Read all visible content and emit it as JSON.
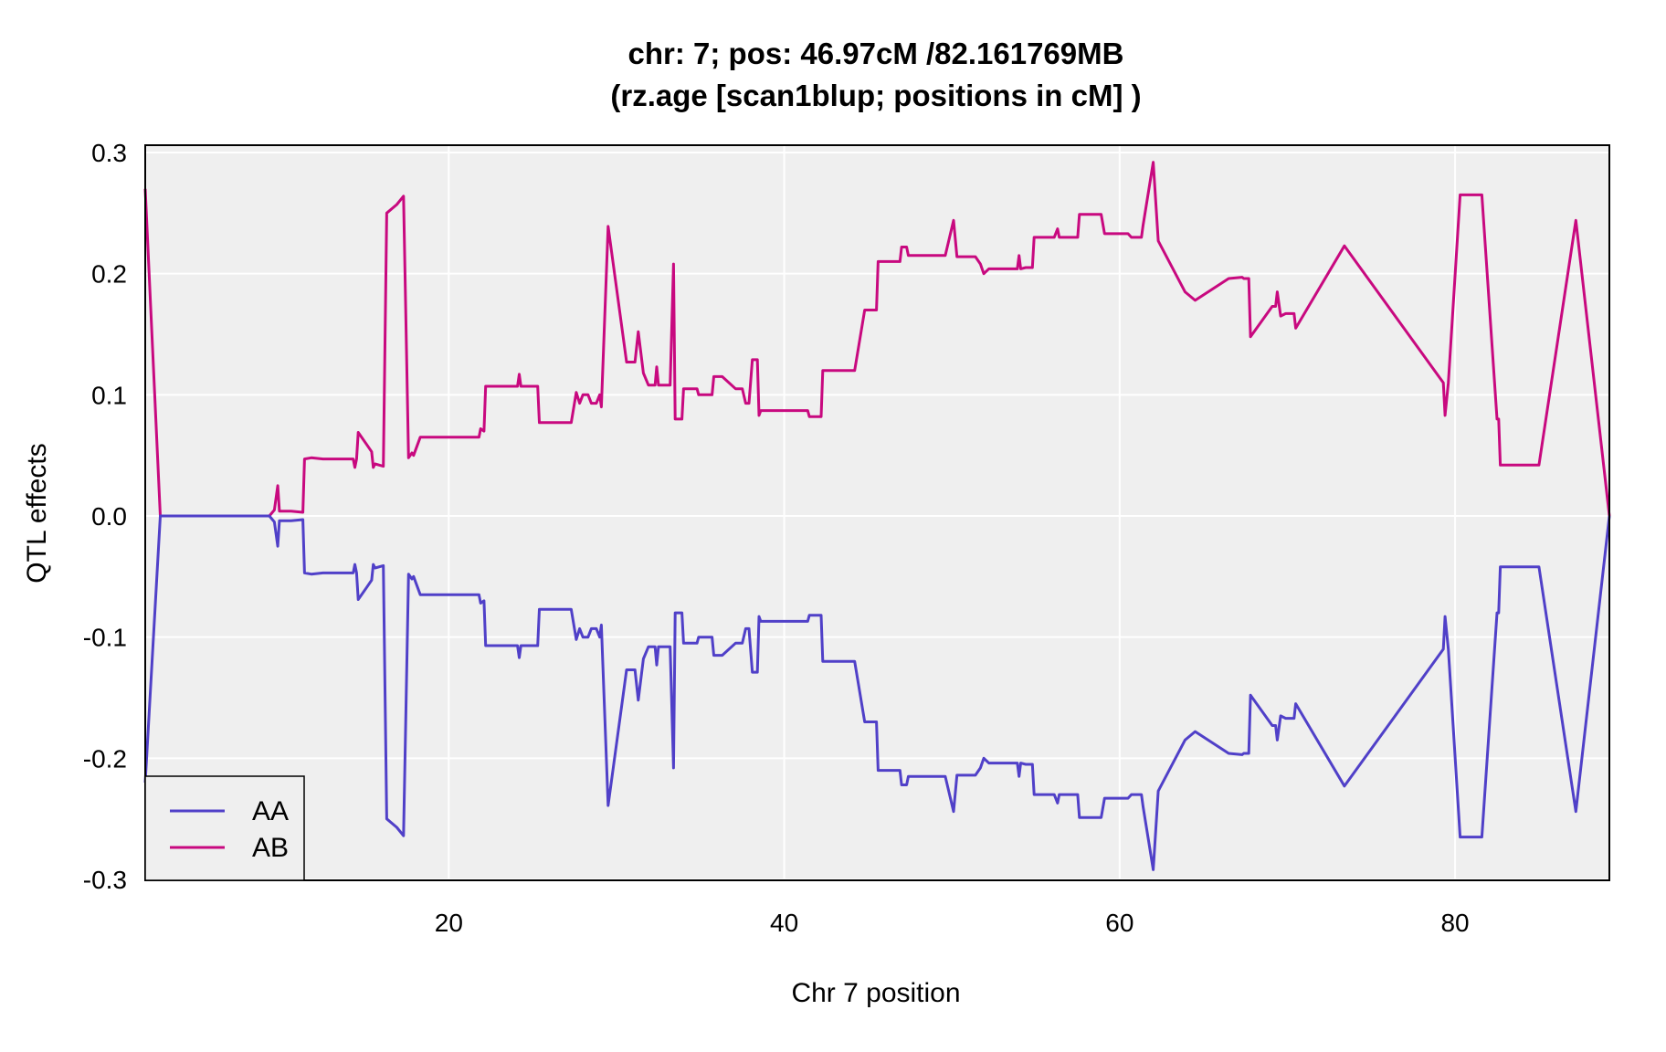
{
  "chart_data": {
    "type": "line",
    "title": "chr: 7; pos: 46.97cM /82.161769MB",
    "subtitle": "(rz.age [scan1blup; positions in cM] )",
    "xlabel": "Chr 7 position",
    "ylabel": "QTL effects",
    "xlim": [
      1.9,
      89.2
    ],
    "ylim": [
      -0.3,
      0.3
    ],
    "x_ticks": [
      20,
      40,
      60,
      80
    ],
    "y_ticks": [
      -0.3,
      -0.2,
      -0.1,
      0.0,
      0.1,
      0.2,
      0.3
    ],
    "x_tick_labels": [
      "20",
      "40",
      "60",
      "80"
    ],
    "y_tick_labels": [
      "-0.3",
      "-0.2",
      "-0.1",
      "0.0",
      "0.1",
      "0.2",
      "0.3"
    ],
    "grid": true,
    "legend_position": "bottom-left",
    "series": [
      {
        "name": "AB",
        "color": "#c8097f",
        "points": [
          [
            1.9,
            0.27
          ],
          [
            2.8,
            0
          ],
          [
            9.3,
            0
          ],
          [
            9.6,
            0.005
          ],
          [
            9.8,
            0.025
          ],
          [
            9.9,
            0.004
          ],
          [
            10.6,
            0.004
          ],
          [
            11.3,
            0.003
          ],
          [
            11.4,
            0.047
          ],
          [
            11.8,
            0.048
          ],
          [
            12.5,
            0.047
          ],
          [
            14.3,
            0.047
          ],
          [
            14.4,
            0.04
          ],
          [
            14.5,
            0.047
          ],
          [
            14.6,
            0.069
          ],
          [
            15.1,
            0.059
          ],
          [
            15.4,
            0.053
          ],
          [
            15.5,
            0.04
          ],
          [
            15.6,
            0.043
          ],
          [
            16.1,
            0.041
          ],
          [
            16.3,
            0.25
          ],
          [
            16.9,
            0.257
          ],
          [
            17.3,
            0.264
          ],
          [
            17.6,
            0.048
          ],
          [
            17.8,
            0.052
          ],
          [
            17.9,
            0.05
          ],
          [
            18.3,
            0.065
          ],
          [
            21.8,
            0.065
          ],
          [
            21.9,
            0.072
          ],
          [
            22.1,
            0.07
          ],
          [
            22.2,
            0.107
          ],
          [
            24.1,
            0.107
          ],
          [
            24.2,
            0.117
          ],
          [
            24.3,
            0.107
          ],
          [
            25.3,
            0.107
          ],
          [
            25.4,
            0.077
          ],
          [
            27.3,
            0.077
          ],
          [
            27.6,
            0.102
          ],
          [
            27.8,
            0.093
          ],
          [
            28.0,
            0.1
          ],
          [
            28.3,
            0.1
          ],
          [
            28.5,
            0.093
          ],
          [
            28.8,
            0.093
          ],
          [
            29.0,
            0.1
          ],
          [
            29.1,
            0.09
          ],
          [
            29.5,
            0.239
          ],
          [
            30.6,
            0.127
          ],
          [
            31.1,
            0.127
          ],
          [
            31.3,
            0.152
          ],
          [
            31.6,
            0.118
          ],
          [
            31.9,
            0.108
          ],
          [
            32.3,
            0.108
          ],
          [
            32.4,
            0.123
          ],
          [
            32.5,
            0.108
          ],
          [
            33.2,
            0.108
          ],
          [
            33.4,
            0.208
          ],
          [
            33.5,
            0.08
          ],
          [
            33.9,
            0.08
          ],
          [
            34.0,
            0.105
          ],
          [
            34.8,
            0.105
          ],
          [
            34.9,
            0.1
          ],
          [
            35.7,
            0.1
          ],
          [
            35.8,
            0.115
          ],
          [
            36.3,
            0.115
          ],
          [
            37.1,
            0.105
          ],
          [
            37.5,
            0.105
          ],
          [
            37.7,
            0.093
          ],
          [
            37.9,
            0.093
          ],
          [
            38.1,
            0.129
          ],
          [
            38.4,
            0.129
          ],
          [
            38.5,
            0.083
          ],
          [
            38.6,
            0.087
          ],
          [
            41.4,
            0.087
          ],
          [
            41.5,
            0.082
          ],
          [
            42.2,
            0.082
          ],
          [
            42.3,
            0.12
          ],
          [
            44.2,
            0.12
          ],
          [
            44.8,
            0.17
          ],
          [
            45.5,
            0.17
          ],
          [
            45.6,
            0.21
          ],
          [
            46.9,
            0.21
          ],
          [
            47.0,
            0.222
          ],
          [
            47.3,
            0.222
          ],
          [
            47.4,
            0.215
          ],
          [
            49.6,
            0.215
          ],
          [
            50.1,
            0.244
          ],
          [
            50.3,
            0.214
          ],
          [
            51.4,
            0.214
          ],
          [
            51.7,
            0.208
          ],
          [
            51.9,
            0.2
          ],
          [
            52.2,
            0.204
          ],
          [
            53.9,
            0.204
          ],
          [
            54.0,
            0.215
          ],
          [
            54.1,
            0.204
          ],
          [
            54.4,
            0.205
          ],
          [
            54.8,
            0.205
          ],
          [
            54.9,
            0.23
          ],
          [
            56.1,
            0.23
          ],
          [
            56.3,
            0.237
          ],
          [
            56.4,
            0.23
          ],
          [
            57.5,
            0.23
          ],
          [
            57.6,
            0.249
          ],
          [
            58.9,
            0.249
          ],
          [
            59.1,
            0.233
          ],
          [
            60.5,
            0.233
          ],
          [
            60.7,
            0.23
          ],
          [
            61.3,
            0.23
          ],
          [
            61.4,
            0.24
          ],
          [
            62.0,
            0.292
          ],
          [
            62.3,
            0.227
          ],
          [
            63.9,
            0.185
          ],
          [
            64.5,
            0.178
          ],
          [
            66.5,
            0.196
          ],
          [
            67.3,
            0.197
          ],
          [
            67.4,
            0.196
          ],
          [
            67.7,
            0.196
          ],
          [
            67.8,
            0.148
          ],
          [
            69.1,
            0.173
          ],
          [
            69.3,
            0.173
          ],
          [
            69.4,
            0.185
          ],
          [
            69.6,
            0.165
          ],
          [
            69.9,
            0.167
          ],
          [
            70.4,
            0.167
          ],
          [
            70.5,
            0.155
          ],
          [
            73.4,
            0.223
          ],
          [
            79.3,
            0.11
          ],
          [
            79.4,
            0.083
          ],
          [
            79.6,
            0.11
          ],
          [
            80.3,
            0.265
          ],
          [
            81.6,
            0.265
          ],
          [
            82.5,
            0.08
          ],
          [
            82.6,
            0.08
          ],
          [
            82.7,
            0.042
          ],
          [
            85.0,
            0.042
          ],
          [
            87.2,
            0.244
          ],
          [
            89.2,
            0
          ]
        ]
      },
      {
        "name": "AA",
        "color": "#5040c8",
        "points": [
          [
            1.9,
            -0.22
          ],
          [
            2.8,
            0
          ],
          [
            9.3,
            0
          ],
          [
            9.6,
            -0.005
          ],
          [
            9.8,
            -0.025
          ],
          [
            9.9,
            -0.004
          ],
          [
            10.6,
            -0.004
          ],
          [
            11.3,
            -0.003
          ],
          [
            11.4,
            -0.047
          ],
          [
            11.8,
            -0.048
          ],
          [
            12.5,
            -0.047
          ],
          [
            14.3,
            -0.047
          ],
          [
            14.4,
            -0.04
          ],
          [
            14.5,
            -0.047
          ],
          [
            14.6,
            -0.069
          ],
          [
            15.1,
            -0.059
          ],
          [
            15.4,
            -0.053
          ],
          [
            15.5,
            -0.04
          ],
          [
            15.6,
            -0.043
          ],
          [
            16.1,
            -0.041
          ],
          [
            16.3,
            -0.25
          ],
          [
            16.9,
            -0.257
          ],
          [
            17.3,
            -0.264
          ],
          [
            17.6,
            -0.048
          ],
          [
            17.8,
            -0.052
          ],
          [
            17.9,
            -0.05
          ],
          [
            18.3,
            -0.065
          ],
          [
            21.8,
            -0.065
          ],
          [
            21.9,
            -0.072
          ],
          [
            22.1,
            -0.07
          ],
          [
            22.2,
            -0.107
          ],
          [
            24.1,
            -0.107
          ],
          [
            24.2,
            -0.117
          ],
          [
            24.3,
            -0.107
          ],
          [
            25.3,
            -0.107
          ],
          [
            25.4,
            -0.077
          ],
          [
            27.3,
            -0.077
          ],
          [
            27.6,
            -0.102
          ],
          [
            27.8,
            -0.093
          ],
          [
            28.0,
            -0.1
          ],
          [
            28.3,
            -0.1
          ],
          [
            28.5,
            -0.093
          ],
          [
            28.8,
            -0.093
          ],
          [
            29.0,
            -0.1
          ],
          [
            29.1,
            -0.09
          ],
          [
            29.5,
            -0.239
          ],
          [
            30.6,
            -0.127
          ],
          [
            31.1,
            -0.127
          ],
          [
            31.3,
            -0.152
          ],
          [
            31.6,
            -0.118
          ],
          [
            31.9,
            -0.108
          ],
          [
            32.3,
            -0.108
          ],
          [
            32.4,
            -0.123
          ],
          [
            32.5,
            -0.108
          ],
          [
            33.2,
            -0.108
          ],
          [
            33.4,
            -0.208
          ],
          [
            33.5,
            -0.08
          ],
          [
            33.9,
            -0.08
          ],
          [
            34.0,
            -0.105
          ],
          [
            34.8,
            -0.105
          ],
          [
            34.9,
            -0.1
          ],
          [
            35.7,
            -0.1
          ],
          [
            35.8,
            -0.115
          ],
          [
            36.3,
            -0.115
          ],
          [
            37.1,
            -0.105
          ],
          [
            37.5,
            -0.105
          ],
          [
            37.7,
            -0.093
          ],
          [
            37.9,
            -0.093
          ],
          [
            38.1,
            -0.129
          ],
          [
            38.4,
            -0.129
          ],
          [
            38.5,
            -0.083
          ],
          [
            38.6,
            -0.087
          ],
          [
            41.4,
            -0.087
          ],
          [
            41.5,
            -0.082
          ],
          [
            42.2,
            -0.082
          ],
          [
            42.3,
            -0.12
          ],
          [
            44.2,
            -0.12
          ],
          [
            44.8,
            -0.17
          ],
          [
            45.5,
            -0.17
          ],
          [
            45.6,
            -0.21
          ],
          [
            46.9,
            -0.21
          ],
          [
            47.0,
            -0.222
          ],
          [
            47.3,
            -0.222
          ],
          [
            47.4,
            -0.215
          ],
          [
            49.6,
            -0.215
          ],
          [
            50.1,
            -0.244
          ],
          [
            50.3,
            -0.214
          ],
          [
            51.4,
            -0.214
          ],
          [
            51.7,
            -0.208
          ],
          [
            51.9,
            -0.2
          ],
          [
            52.2,
            -0.204
          ],
          [
            53.9,
            -0.204
          ],
          [
            54.0,
            -0.215
          ],
          [
            54.1,
            -0.204
          ],
          [
            54.4,
            -0.205
          ],
          [
            54.8,
            -0.205
          ],
          [
            54.9,
            -0.23
          ],
          [
            56.1,
            -0.23
          ],
          [
            56.3,
            -0.237
          ],
          [
            56.4,
            -0.23
          ],
          [
            57.5,
            -0.23
          ],
          [
            57.6,
            -0.249
          ],
          [
            58.9,
            -0.249
          ],
          [
            59.1,
            -0.233
          ],
          [
            60.5,
            -0.233
          ],
          [
            60.7,
            -0.23
          ],
          [
            61.3,
            -0.23
          ],
          [
            61.4,
            -0.24
          ],
          [
            62.0,
            -0.292
          ],
          [
            62.3,
            -0.227
          ],
          [
            63.9,
            -0.185
          ],
          [
            64.5,
            -0.178
          ],
          [
            66.5,
            -0.196
          ],
          [
            67.3,
            -0.197
          ],
          [
            67.4,
            -0.196
          ],
          [
            67.7,
            -0.196
          ],
          [
            67.8,
            -0.148
          ],
          [
            69.1,
            -0.173
          ],
          [
            69.3,
            -0.173
          ],
          [
            69.4,
            -0.185
          ],
          [
            69.6,
            -0.165
          ],
          [
            69.9,
            -0.167
          ],
          [
            70.4,
            -0.167
          ],
          [
            70.5,
            -0.155
          ],
          [
            73.4,
            -0.223
          ],
          [
            79.3,
            -0.11
          ],
          [
            79.4,
            -0.083
          ],
          [
            79.6,
            -0.11
          ],
          [
            80.3,
            -0.265
          ],
          [
            81.6,
            -0.265
          ],
          [
            82.5,
            -0.08
          ],
          [
            82.6,
            -0.08
          ],
          [
            82.7,
            -0.042
          ],
          [
            85.0,
            -0.042
          ],
          [
            87.2,
            -0.244
          ],
          [
            89.2,
            0
          ]
        ]
      }
    ],
    "legend": [
      {
        "name": "AA",
        "color": "#5040c8"
      },
      {
        "name": "AB",
        "color": "#c8097f"
      }
    ]
  }
}
